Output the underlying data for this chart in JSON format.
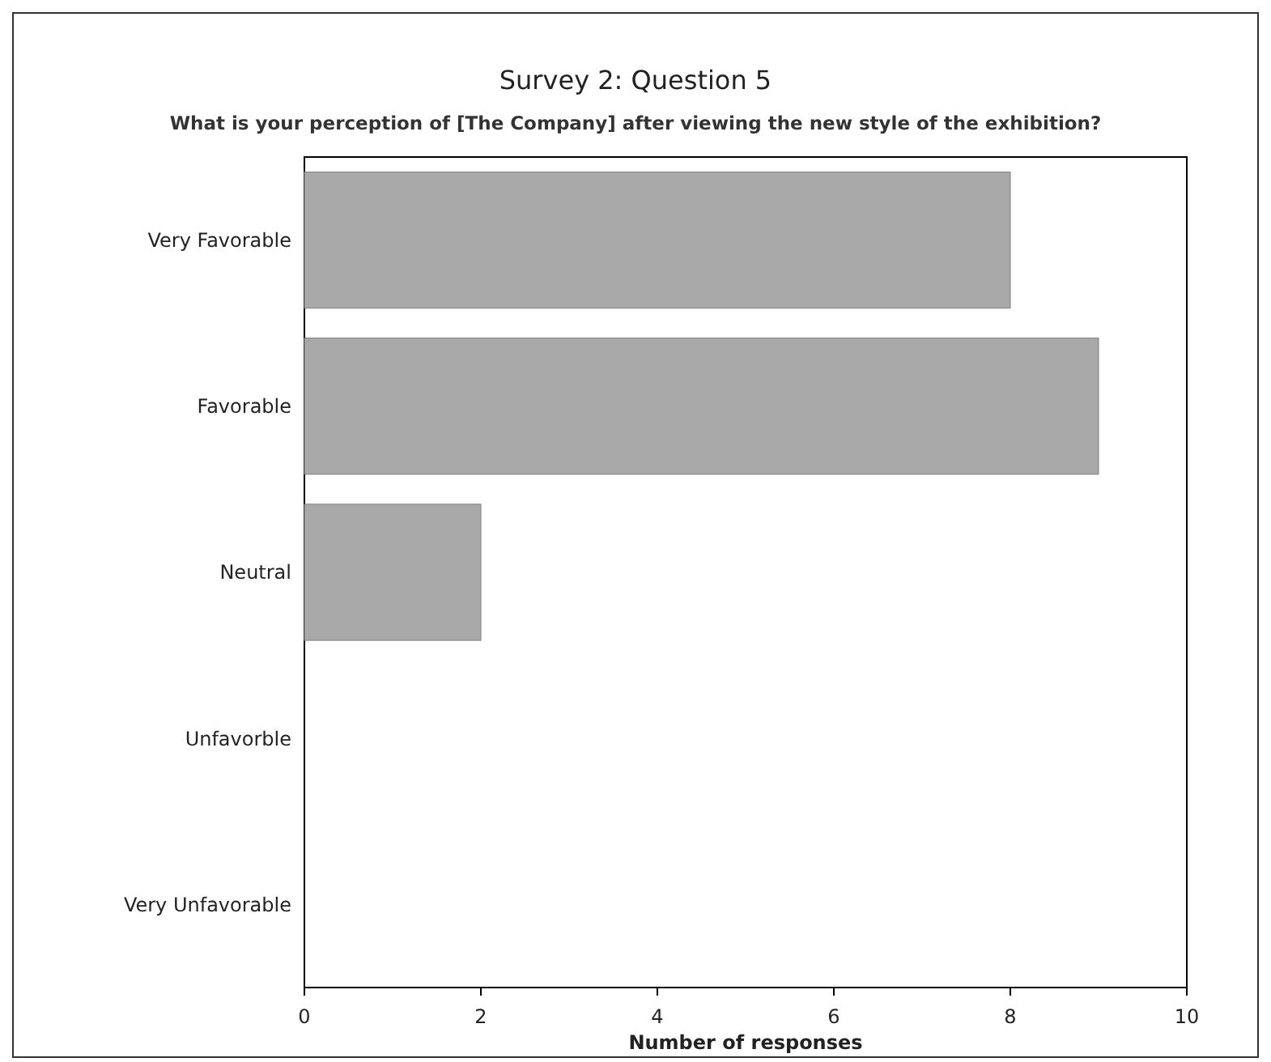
{
  "chart_data": {
    "type": "bar",
    "orientation": "horizontal",
    "title": "Survey 2: Question 5",
    "subtitle": "What is your perception of [The Company] after viewing the new style of the exhibition?",
    "xlabel": "Number of responses",
    "categories": [
      "Very Favorable",
      "Favorable",
      "Neutral",
      "Unfavorble",
      "Very Unfavorable"
    ],
    "values": [
      8,
      9,
      2,
      0,
      0
    ],
    "color": "#a8a8a8",
    "xlim": [
      0,
      10
    ],
    "xticks": [
      0,
      2,
      4,
      6,
      8,
      10
    ],
    "grid": false
  }
}
